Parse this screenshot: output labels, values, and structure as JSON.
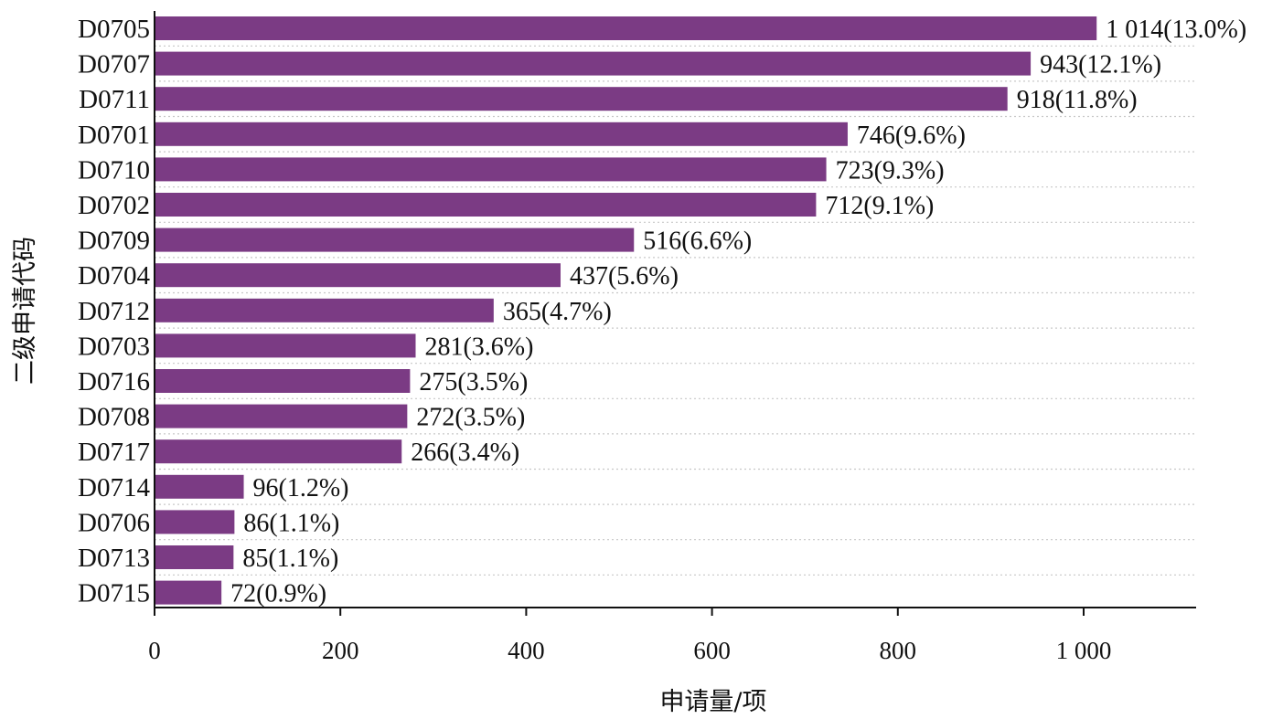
{
  "chart_data": {
    "type": "bar",
    "orientation": "horizontal",
    "categories": [
      "D0705",
      "D0707",
      "D0711",
      "D0701",
      "D0710",
      "D0702",
      "D0709",
      "D0704",
      "D0712",
      "D0703",
      "D0716",
      "D0708",
      "D0717",
      "D0714",
      "D0706",
      "D0713",
      "D0715"
    ],
    "values": [
      1014,
      943,
      918,
      746,
      723,
      712,
      516,
      437,
      365,
      281,
      275,
      272,
      266,
      96,
      86,
      85,
      72
    ],
    "data_labels": [
      "1 014(13.0%)",
      "943(12.1%)",
      "918(11.8%)",
      "746(9.6%)",
      "723(9.3%)",
      "712(9.1%)",
      "516(6.6%)",
      "437(5.6%)",
      "365(4.7%)",
      "281(3.6%)",
      "275(3.5%)",
      "272(3.5%)",
      "266(3.4%)",
      "96(1.2%)",
      "86(1.1%)",
      "85(1.1%)",
      "72(0.9%)"
    ],
    "xlim": [
      0,
      1120
    ],
    "x_ticks": [
      0,
      200,
      400,
      600,
      800,
      1000
    ],
    "x_tick_labels": [
      "0",
      "200",
      "400",
      "600",
      "800",
      "1 000"
    ],
    "xlabel": "申请量/项",
    "ylabel": "二级申请代码",
    "bar_color": "#7b3b84",
    "grid": "horizontal dotted"
  }
}
